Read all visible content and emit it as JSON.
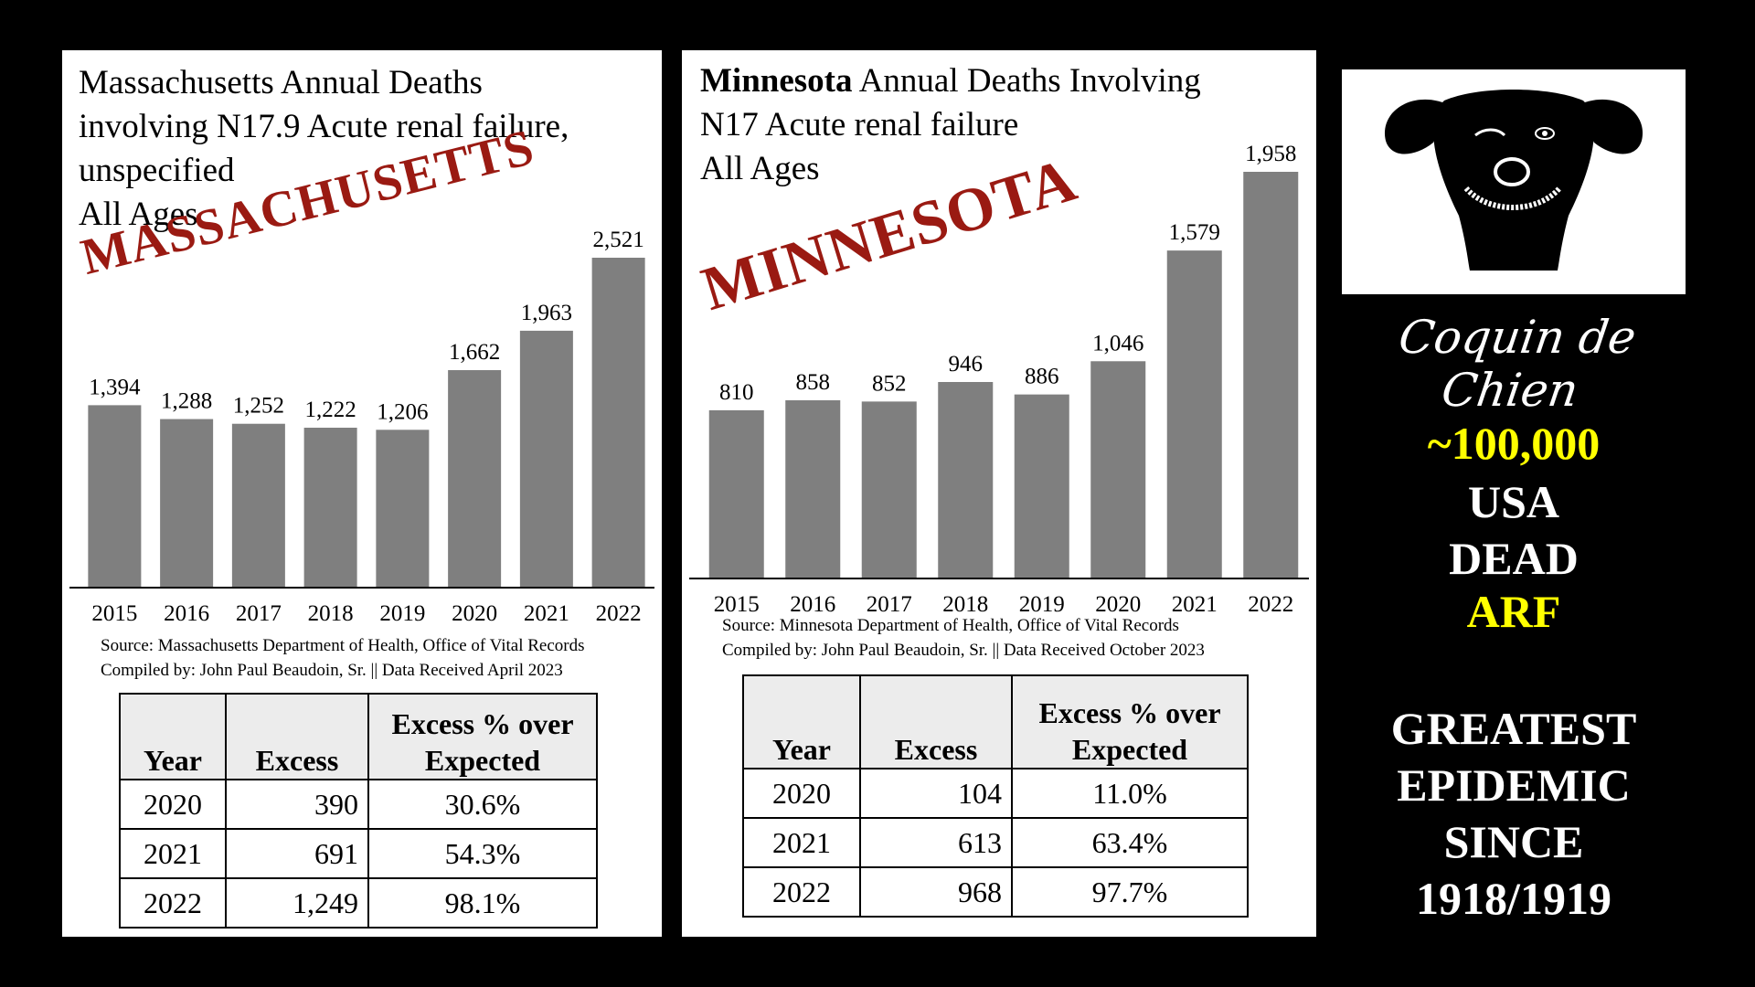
{
  "chart_data": [
    {
      "type": "bar",
      "title_lines": [
        "Massachusetts Annual Deaths",
        "involving N17.9 Acute renal failure,",
        "unspecified",
        "All Ages"
      ],
      "stamp": "MASSACHUSETTS",
      "categories": [
        "2015",
        "2016",
        "2017",
        "2018",
        "2019",
        "2020",
        "2021",
        "2022"
      ],
      "values": [
        1394,
        1288,
        1252,
        1222,
        1206,
        1662,
        1963,
        2521
      ],
      "labels": [
        "1,394",
        "1,288",
        "1,252",
        "1,222",
        "1,206",
        "1,662",
        "1,963",
        "2,521"
      ],
      "ylim": [
        0,
        2521
      ],
      "bar_color": "#7f7f7f",
      "source": "Source:  Massachusetts Department of Health, Office of Vital Records",
      "compiled": "Compiled by:  John Paul Beaudoin, Sr. || Data Received April 2023",
      "table": {
        "headers": [
          "Year",
          "Excess",
          "Excess % over Expected"
        ],
        "rows": [
          [
            "2020",
            "390",
            "30.6%"
          ],
          [
            "2021",
            "691",
            "54.3%"
          ],
          [
            "2022",
            "1,249",
            "98.1%"
          ]
        ]
      }
    },
    {
      "type": "bar",
      "title_bold": "Minnesota",
      "title_lines": [
        " Annual Deaths Involving",
        "N17 Acute renal failure",
        "All Ages"
      ],
      "stamp": "MINNESOTA",
      "categories": [
        "2015",
        "2016",
        "2017",
        "2018",
        "2019",
        "2020",
        "2021",
        "2022"
      ],
      "values": [
        810,
        858,
        852,
        946,
        886,
        1046,
        1579,
        1958
      ],
      "labels": [
        "810",
        "858",
        "852",
        "946",
        "886",
        "1,046",
        "1,579",
        "1,958"
      ],
      "ylim": [
        0,
        1958
      ],
      "bar_color": "#7f7f7f",
      "source": "Source:  Minnesota Department of Health, Office of Vital Records",
      "compiled": "Compiled by:  John Paul Beaudoin, Sr. || Data Received October 2023",
      "table": {
        "headers": [
          "Year",
          "Excess",
          "Excess % over Expected"
        ],
        "rows": [
          [
            "2020",
            "104",
            "11.0%"
          ],
          [
            "2021",
            "613",
            "63.4%"
          ],
          [
            "2022",
            "968",
            "97.7%"
          ]
        ]
      }
    }
  ],
  "sidebar": {
    "brand": "Coquin de Chien",
    "logo_icon": "dog-face-icon",
    "stat_number": "~100,000",
    "stat_line2": "USA",
    "stat_line3": "DEAD",
    "stat_line4": "ARF",
    "headline": [
      "GREATEST",
      "EPIDEMIC",
      "SINCE",
      "1918/1919"
    ]
  },
  "colors": {
    "background": "#000000",
    "stamp_red": "#9a1a12",
    "highlight_yellow": "#ffff00"
  }
}
